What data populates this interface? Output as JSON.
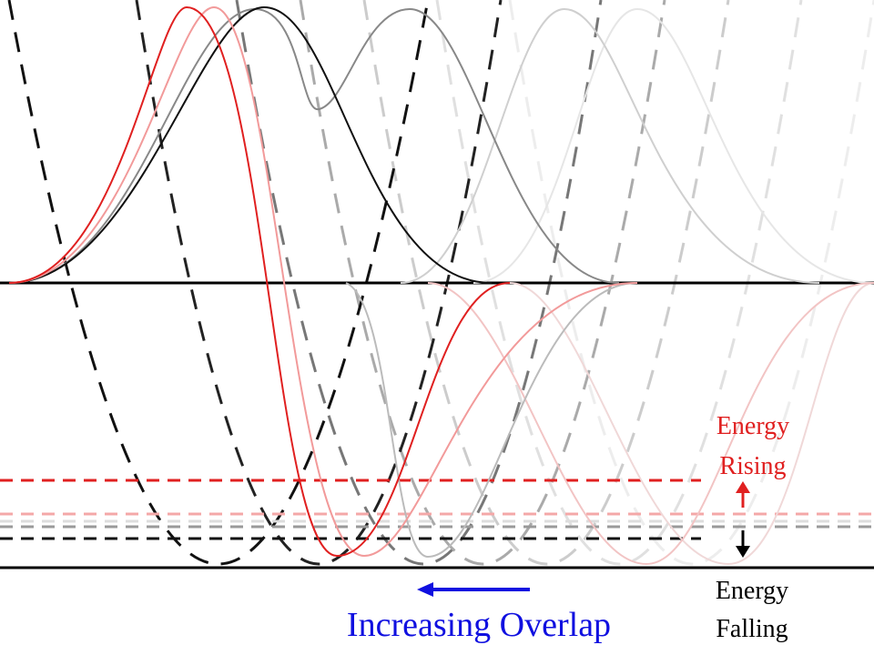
{
  "labels": {
    "energy_rising_line1": "Energy",
    "energy_rising_line2": "Rising",
    "energy_falling_line1": "Energy",
    "energy_falling_line2": "Falling",
    "increasing_overlap": "Increasing Overlap"
  },
  "colors": {
    "rising": "#e02020",
    "falling": "#000000",
    "overlap": "#1010e0",
    "axis": "#000000"
  },
  "icons": {
    "rising_arrow": "arrow-up-icon",
    "falling_arrow": "arrow-down-icon",
    "overlap_arrow": "arrow-left-icon"
  }
}
